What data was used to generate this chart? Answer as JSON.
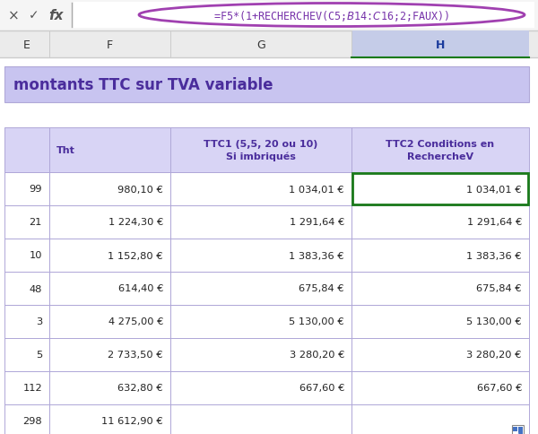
{
  "formula_bar_text": "=F5*(1+RECHERCHEV(C5;$B$14:$C$16;2;FAUX))",
  "col_letters": [
    "E",
    "F",
    "G",
    "H"
  ],
  "title": "montants TTC sur TVA variable",
  "header_row": [
    "",
    "Tht",
    "TTC1 (5,5, 20 ou 10)\nSi imbriqués",
    "TTC2 Conditions en\nRechercheV"
  ],
  "rows": [
    [
      "99",
      "980,10 €",
      "1 034,01 €",
      "1 034,01 €"
    ],
    [
      "21",
      "1 224,30 €",
      "1 291,64 €",
      "1 291,64 €"
    ],
    [
      "10",
      "1 152,80 €",
      "1 383,36 €",
      "1 383,36 €"
    ],
    [
      "48",
      "614,40 €",
      "675,84 €",
      "675,84 €"
    ],
    [
      "3",
      "4 275,00 €",
      "5 130,00 €",
      "5 130,00 €"
    ],
    [
      "5",
      "2 733,50 €",
      "3 280,20 €",
      "3 280,20 €"
    ],
    [
      "112",
      "632,80 €",
      "667,60 €",
      "667,60 €"
    ],
    [
      "298",
      "11 612,90 €",
      "",
      ""
    ]
  ],
  "bg_color": "#ffffff",
  "title_bg": "#c8c4f0",
  "header_bg": "#d8d4f5",
  "grid_color": "#b0a8d8",
  "title_color": "#4a2d9c",
  "header_color": "#4a2d9c",
  "data_color": "#222222",
  "formula_color": "#7733aa",
  "formula_oval_color": "#a040b0",
  "selected_cell_border": "#1a7a1a",
  "toolbar_bg": "#f5f5f5",
  "colbar_bg": "#ebebeb",
  "col_h_bg": "#c5cce8",
  "col_h_color": "#1a3a9c",
  "col_normal_color": "#333333",
  "icon_color": "#555555"
}
